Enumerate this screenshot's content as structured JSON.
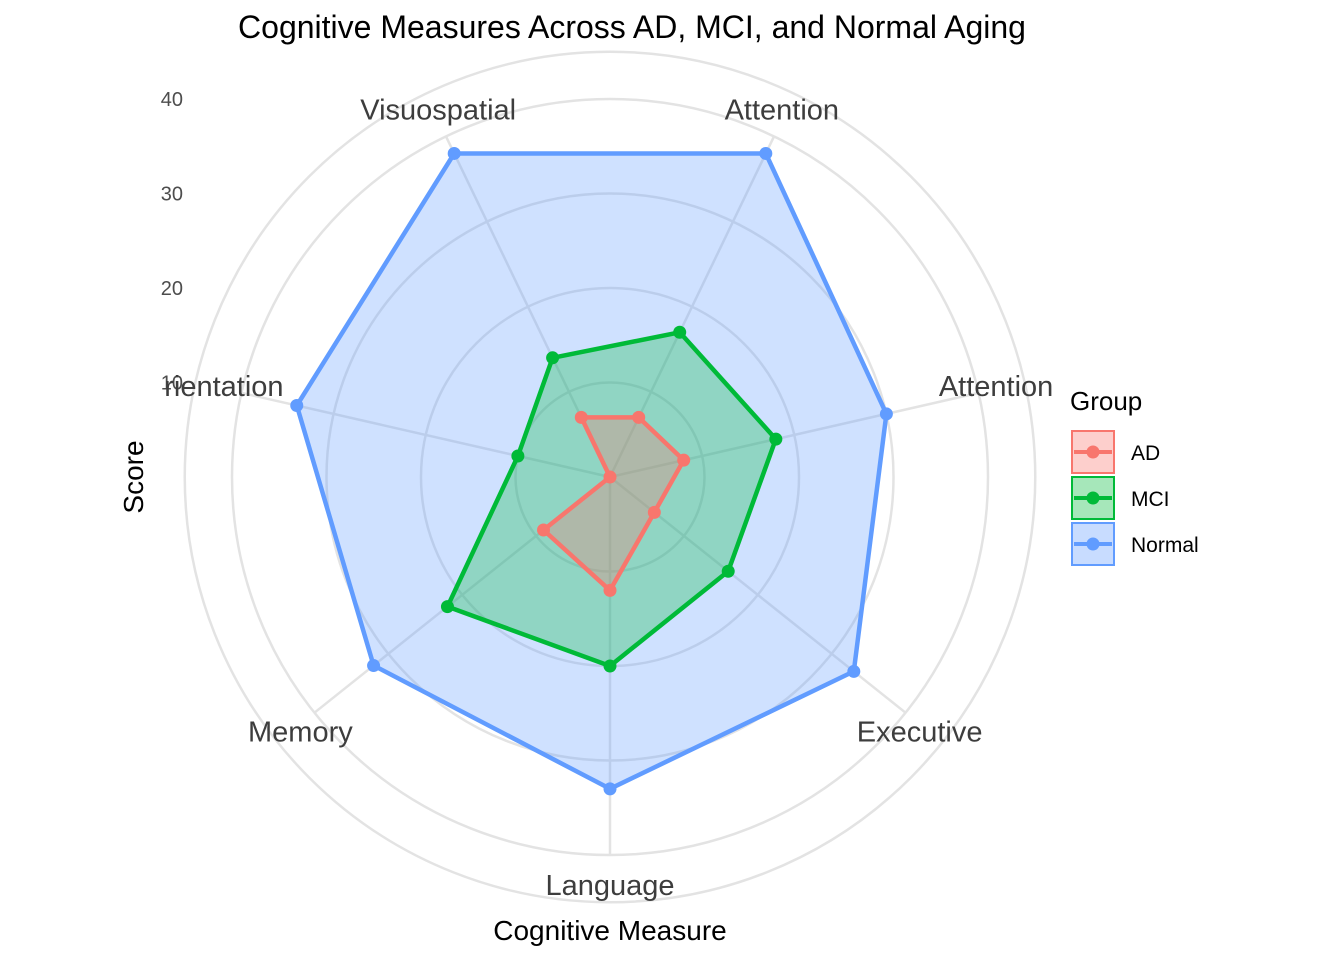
{
  "chart_data": {
    "type": "radar",
    "title": "Cognitive Measures Across AD, MCI, and Normal Aging",
    "xlabel": "Cognitive Measure",
    "ylabel": "Score",
    "categories": [
      "Attention",
      "Attention",
      "Executive",
      "Language",
      "Memory",
      "rientation",
      "Visuospatial"
    ],
    "y_ticks": [
      10,
      20,
      30,
      40
    ],
    "ylim": [
      0,
      40
    ],
    "grid": true,
    "legend": {
      "title": "Group",
      "position": "right"
    },
    "series": [
      {
        "name": "AD",
        "color": "#f8766d",
        "values": [
          7,
          8,
          6,
          12,
          9,
          0,
          7
        ]
      },
      {
        "name": "MCI",
        "color": "#00ba38",
        "values": [
          17,
          18,
          16,
          20,
          22,
          10,
          14
        ]
      },
      {
        "name": "Normal",
        "color": "#619cff",
        "values": [
          38,
          30,
          33,
          33,
          32,
          34,
          38
        ]
      }
    ]
  }
}
